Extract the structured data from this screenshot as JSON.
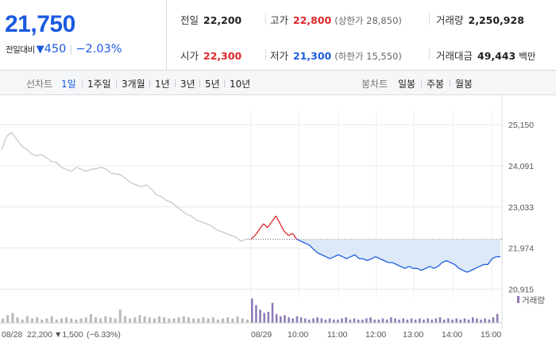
{
  "quote": {
    "price": "21,750",
    "change_label": "전일대비",
    "change_arrow": "▼",
    "change_amount": "450",
    "change_percent": "−2.03%"
  },
  "stats": {
    "prev_close_label": "전일",
    "prev_close": "22,200",
    "high_label": "고가",
    "high": "22,800",
    "upper_limit": "(상한가 28,850)",
    "volume_label": "거래량",
    "volume": "2,250,928",
    "open_label": "시가",
    "open": "22,300",
    "low_label": "저가",
    "low": "21,300",
    "lower_limit": "(하한가 15,550)",
    "turnover_label": "거래대금",
    "turnover": "49,443",
    "turnover_unit": "백만"
  },
  "tabs": {
    "line_label": "선차트",
    "line_periods": [
      "1일",
      "1주일",
      "3개월",
      "1년",
      "3년",
      "5년",
      "10년"
    ],
    "active_period": "1일",
    "candle_label": "봉차트",
    "candle_periods": [
      "일봉",
      "주봉",
      "월봉"
    ]
  },
  "colors": {
    "up": "#e0262a",
    "down": "#1a5ae0",
    "prev_day": "#c8c8c8",
    "volume_prev": "#bbbbbb",
    "volume_today": "#8f7ab8"
  },
  "chart_data": {
    "type": "line",
    "y_ticks": [
      "25,150",
      "24,091",
      "23,033",
      "21,974",
      "20,915"
    ],
    "y_tick_values": [
      25150,
      24091,
      23033,
      21974,
      20915
    ],
    "ylim": [
      20700,
      25500
    ],
    "baseline": 22200,
    "x_labels": [
      "08/29",
      "10:00",
      "11:00",
      "12:00",
      "13:00",
      "14:00",
      "15:00"
    ],
    "volume_label": "거래량",
    "prev_day_note": {
      "date": "08/28",
      "close": "22,200",
      "change": "▼1,500",
      "pct": "(−6.33%)"
    },
    "series": [
      {
        "values": [
          24500,
          24850,
          24950,
          24780,
          24600,
          24520,
          24400,
          24350,
          24380,
          24300,
          24200,
          24180,
          24050,
          24000,
          23950,
          24050,
          24000,
          23950,
          24000,
          24020,
          24050,
          24000,
          23900,
          23880,
          23850,
          23750,
          23650,
          23600,
          23550,
          23600,
          23500,
          23350,
          23300,
          23200,
          23150,
          23050,
          22950,
          22850,
          22800,
          22700,
          22650,
          22600,
          22550,
          22450,
          22400,
          22350,
          22300,
          22250,
          22150,
          22200,
          22200
        ]
      },
      {
        "values": [
          22200,
          22300,
          22450,
          22600,
          22500,
          22650,
          22800,
          22600,
          22400,
          22300,
          22350,
          22200,
          22150,
          22100,
          22050,
          21950,
          21850,
          21800,
          21750,
          21700,
          21750,
          21800,
          21750,
          21700,
          21750,
          21800,
          21700,
          21700,
          21650,
          21700,
          21750,
          21700,
          21650,
          21600,
          21600,
          21550,
          21500,
          21450,
          21500,
          21450,
          21450,
          21400,
          21450,
          21500,
          21450,
          21500,
          21600,
          21650,
          21600,
          21550,
          21450,
          21400,
          21350,
          21400,
          21450,
          21500,
          21550,
          21550,
          21700,
          21750,
          21750
        ]
      }
    ],
    "volume_prev": [
      4,
      7,
      9,
      5,
      3,
      6,
      4,
      5,
      3,
      4,
      6,
      3,
      4,
      5,
      4,
      3,
      4,
      5,
      8,
      5,
      4,
      6,
      5,
      4,
      12,
      6,
      4,
      5,
      7,
      6,
      5,
      4,
      6,
      5,
      4,
      4,
      5,
      6,
      5,
      4,
      4,
      5,
      4,
      5,
      3,
      4,
      5,
      4,
      6,
      4,
      3
    ],
    "volume_today": [
      22,
      16,
      12,
      9,
      10,
      18,
      8,
      6,
      7,
      5,
      4,
      6,
      5,
      4,
      3,
      4,
      5,
      4,
      3,
      4,
      3,
      3,
      4,
      5,
      3,
      4,
      3,
      3,
      4,
      5,
      3,
      3,
      4,
      3,
      5,
      4,
      3,
      4,
      3,
      4,
      3,
      4,
      3,
      4,
      3,
      4,
      5,
      3,
      4,
      3,
      4,
      3,
      4,
      3,
      5,
      4,
      3,
      4,
      3,
      5,
      8
    ]
  }
}
